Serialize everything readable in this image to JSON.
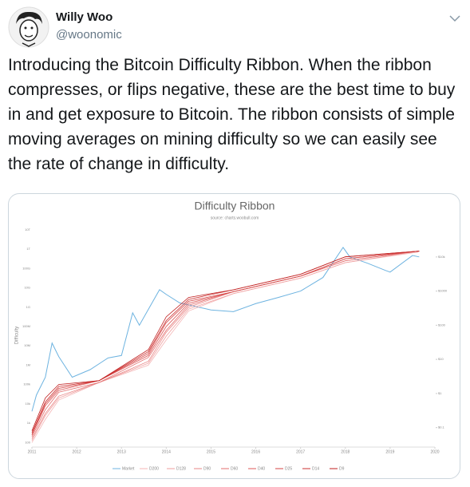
{
  "tweet": {
    "name": "Willy Woo",
    "handle": "@woonomic",
    "text": "Introducing the Bitcoin Difficulty Ribbon. When the ribbon compresses, or flips negative, these are the best time to buy in and get exposure to Bitcoin. The ribbon consists of simple moving averages on mining difficulty so we can easily see the rate of change in difficulty."
  },
  "chart_data": {
    "type": "line",
    "title": "Difficulty Ribbon",
    "subtitle": "source: charts.woobull.com",
    "y_label": "Difficulty",
    "xlim": [
      2011,
      2020
    ],
    "xticks": [
      2011,
      2012,
      2013,
      2014,
      2015,
      2016,
      2017,
      2018,
      2019,
      2020
    ],
    "ylog": true,
    "ylim": [
      58,
      21000000000000.0
    ],
    "yticks": [
      {
        "value": 10000000000000.0,
        "label": "10T"
      },
      {
        "value": 1000000000000.0,
        "label": "1T"
      },
      {
        "value": 100000000000.0,
        "label": "100G"
      },
      {
        "value": 10000000000.0,
        "label": "10G"
      },
      {
        "value": 1000000000.0,
        "label": "1G"
      },
      {
        "value": 100000000.0,
        "label": "100M"
      },
      {
        "value": 10000000.0,
        "label": "10M"
      },
      {
        "value": 1000000.0,
        "label": "1M"
      },
      {
        "value": 100000.0,
        "label": "100k"
      },
      {
        "value": 10000.0,
        "label": "10k"
      },
      {
        "value": 1000.0,
        "label": "1k"
      },
      100
    ],
    "y2log": true,
    "y2lim": [
      0.027,
      95000
    ],
    "y2ticks": [
      {
        "value": 10000,
        "label": "$10k"
      },
      {
        "value": 1000,
        "label": "$1000"
      },
      {
        "value": 100,
        "label": "$100"
      },
      {
        "value": 10,
        "label": "$10"
      },
      {
        "value": 1,
        "label": "$1"
      },
      {
        "value": 0.1,
        "label": "$0.1"
      }
    ],
    "grid": false,
    "legend": "bottom",
    "series": [
      {
        "name": "Market",
        "color": "#6db3e0",
        "axis": "y2",
        "x": [
          2011,
          2011.1,
          2011.3,
          2011.45,
          2011.6,
          2011.9,
          2012.3,
          2012.7,
          2013.0,
          2013.25,
          2013.4,
          2013.85,
          2014.0,
          2014.3,
          2015.0,
          2015.5,
          2016.0,
          2016.5,
          2017.0,
          2017.5,
          2017.95,
          2018.1,
          2018.5,
          2018.9,
          2019.0,
          2019.5,
          2019.65
        ],
        "values": [
          0.3,
          0.9,
          3,
          30,
          12,
          3,
          5,
          11,
          13,
          230,
          100,
          1100,
          800,
          450,
          280,
          250,
          430,
          650,
          1000,
          2500,
          19000,
          10000,
          6500,
          4000,
          3600,
          11000,
          10000
        ]
      },
      {
        "name": "D200",
        "color": "#f4b6b6",
        "x": [
          2011,
          2011.3,
          2011.6,
          2012.5,
          2013.6,
          2014,
          2014.5,
          2015.5,
          2017,
          2018,
          2019.65
        ],
        "values": [
          100.0,
          1580.0,
          15800.0,
          126000.0,
          1000000.0,
          20000000.0,
          630000000.0,
          5000000000.0,
          31600000000.0,
          200000000000.0,
          708000000000.0
        ]
      },
      {
        "name": "D128",
        "color": "#ef9d9d",
        "x": [
          2011,
          2011.3,
          2011.6,
          2012.5,
          2013.6,
          2014,
          2014.5,
          2015.5,
          2017,
          2018,
          2019.65
        ],
        "values": [
          126.0,
          2500.0,
          20000.0,
          126000.0,
          1260000.0,
          31600000.0,
          790000000.0,
          5000000000.0,
          31600000000.0,
          200000000000.0,
          790000000000.0
        ]
      },
      {
        "name": "D90",
        "color": "#e98585",
        "x": [
          2011,
          2011.3,
          2011.6,
          2012.5,
          2013.6,
          2014,
          2014.5,
          2015.5,
          2017,
          2018,
          2019.65
        ],
        "values": [
          158.0,
          3160.0,
          25000.0,
          126000.0,
          1580000.0,
          50000000.0,
          1000000000.0,
          6300000000.0,
          40000000000.0,
          250000000000.0,
          790000000000.0
        ]
      },
      {
        "name": "D60",
        "color": "#e36e6e",
        "x": [
          2011,
          2011.3,
          2011.6,
          2012.5,
          2013.6,
          2014,
          2014.5,
          2015.5,
          2017,
          2018,
          2019.65
        ],
        "values": [
          200.0,
          5000.0,
          40000.0,
          126000.0,
          2500000.0,
          63000000.0,
          1260000000.0,
          6300000000.0,
          40000000000.0,
          250000000000.0,
          790000000000.0
        ]
      },
      {
        "name": "D40",
        "color": "#dc5757",
        "x": [
          2011,
          2011.3,
          2011.6,
          2012.5,
          2013.6,
          2014,
          2014.5,
          2015.5,
          2017,
          2018,
          2019.65
        ],
        "values": [
          250.0,
          7900.0,
          50000.0,
          158000.0,
          3160000.0,
          100000000.0,
          1580000000.0,
          6300000000.0,
          40000000000.0,
          316000000000.0,
          790000000000.0
        ]
      },
      {
        "name": "D25",
        "color": "#d44343",
        "x": [
          2011,
          2011.3,
          2011.6,
          2012.5,
          2013.6,
          2014,
          2014.5,
          2015.5,
          2017,
          2018,
          2019.65
        ],
        "values": [
          250.0,
          10000.0,
          63000.0,
          158000.0,
          4000000.0,
          158000000.0,
          2000000000.0,
          6300000000.0,
          40000000000.0,
          316000000000.0,
          790000000000.0
        ]
      },
      {
        "name": "D14",
        "color": "#cb3030",
        "x": [
          2011,
          2011.3,
          2011.6,
          2012.5,
          2013.6,
          2014,
          2014.5,
          2015.5,
          2017,
          2018,
          2019.65
        ],
        "values": [
          316.0,
          12600.0,
          79000.0,
          158000.0,
          5000000.0,
          200000000.0,
          2500000000.0,
          7900000000.0,
          50000000000.0,
          400000000000.0,
          790000000000.0
        ]
      },
      {
        "name": "D9",
        "color": "#c01f1f",
        "x": [
          2011,
          2011.3,
          2011.6,
          2012.5,
          2013.6,
          2014,
          2014.5,
          2015.5,
          2017,
          2018,
          2019.65
        ],
        "values": [
          400.0,
          20000.0,
          100000.0,
          158000.0,
          6300000.0,
          316000000.0,
          3160000000.0,
          7900000000.0,
          50000000000.0,
          400000000000.0,
          790000000000.0
        ]
      }
    ]
  }
}
